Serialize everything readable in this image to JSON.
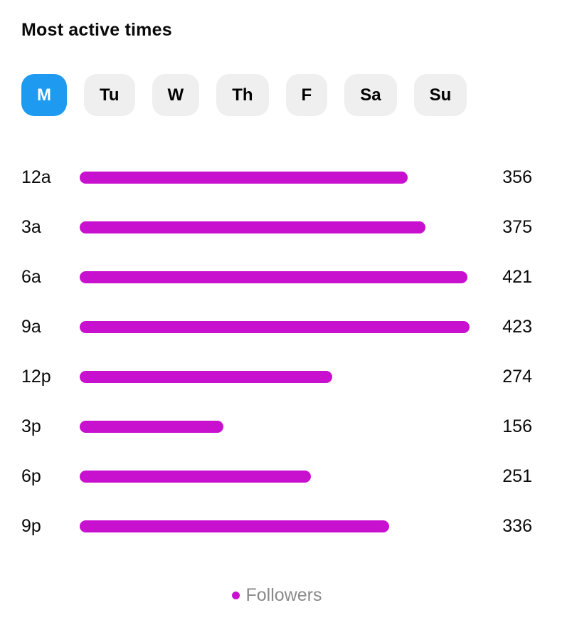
{
  "title": "Most active times",
  "day_tabs": {
    "items": [
      {
        "label": "M",
        "selected": true
      },
      {
        "label": "Tu",
        "selected": false
      },
      {
        "label": "W",
        "selected": false
      },
      {
        "label": "Th",
        "selected": false
      },
      {
        "label": "F",
        "selected": false
      },
      {
        "label": "Sa",
        "selected": false
      },
      {
        "label": "Su",
        "selected": false
      }
    ]
  },
  "chart_data": {
    "type": "bar",
    "orientation": "horizontal",
    "title": "Most active times",
    "categories": [
      "12a",
      "3a",
      "6a",
      "9a",
      "12p",
      "3p",
      "6p",
      "9p"
    ],
    "values": [
      356,
      375,
      421,
      423,
      274,
      156,
      251,
      336
    ],
    "series": [
      {
        "name": "Followers",
        "values": [
          356,
          375,
          421,
          423,
          274,
          156,
          251,
          336
        ]
      }
    ],
    "xlim": [
      0,
      423
    ],
    "grid": false,
    "legend_position": "bottom",
    "bar_color": "#C711CE"
  },
  "legend": {
    "label": "Followers",
    "dot_color": "#C711CE"
  },
  "colors": {
    "selected_tab_bg": "#1E9BF0",
    "selected_tab_text": "#FFFFFF",
    "tab_bg": "#EFEFEF",
    "tab_text": "#000000",
    "bar": "#C711CE",
    "legend_text": "#8A8A8A",
    "background": "#FFFFFF"
  }
}
